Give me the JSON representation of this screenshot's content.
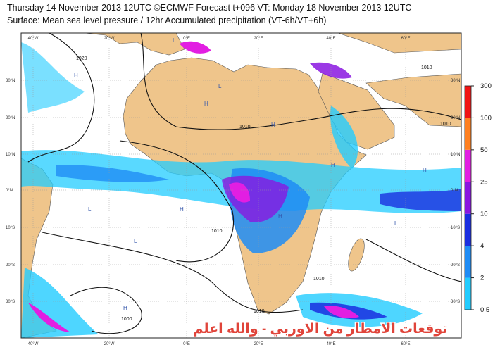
{
  "header": {
    "line1": "Thursday 14 November 2013 12UTC ©ECMWF Forecast t+096 VT: Monday 18 November 2013 12UTC",
    "line2": "Surface: Mean sea level pressure / 12hr Accumulated precipitation (VT-6h/VT+6h)"
  },
  "map": {
    "lon_labels": [
      "40°W",
      "20°W",
      "0°E",
      "20°E",
      "40°E",
      "60°E"
    ],
    "lat_labels": [
      "30°N",
      "20°N",
      "10°N",
      "0°N",
      "10°S",
      "20°S",
      "30°S"
    ],
    "isobar_labels": [
      "1020",
      "1010",
      "1010",
      "1010",
      "1000",
      "1010",
      "1010",
      "1010"
    ],
    "pressure_centers": [
      "H",
      "H",
      "L",
      "H",
      "L",
      "H",
      "L",
      "H",
      "H",
      "L",
      "L",
      "H",
      "H"
    ],
    "watermark": "توقعات الامطار من الاوربي - والله اعلم"
  },
  "colorbar": {
    "levels": [
      0.5,
      2,
      4,
      10,
      25,
      50,
      100,
      300
    ],
    "colors": [
      "#22ccff",
      "#1f8cf5",
      "#1a2ee0",
      "#8a16e0",
      "#e21ee2",
      "#ff8020",
      "#f01414"
    ]
  }
}
